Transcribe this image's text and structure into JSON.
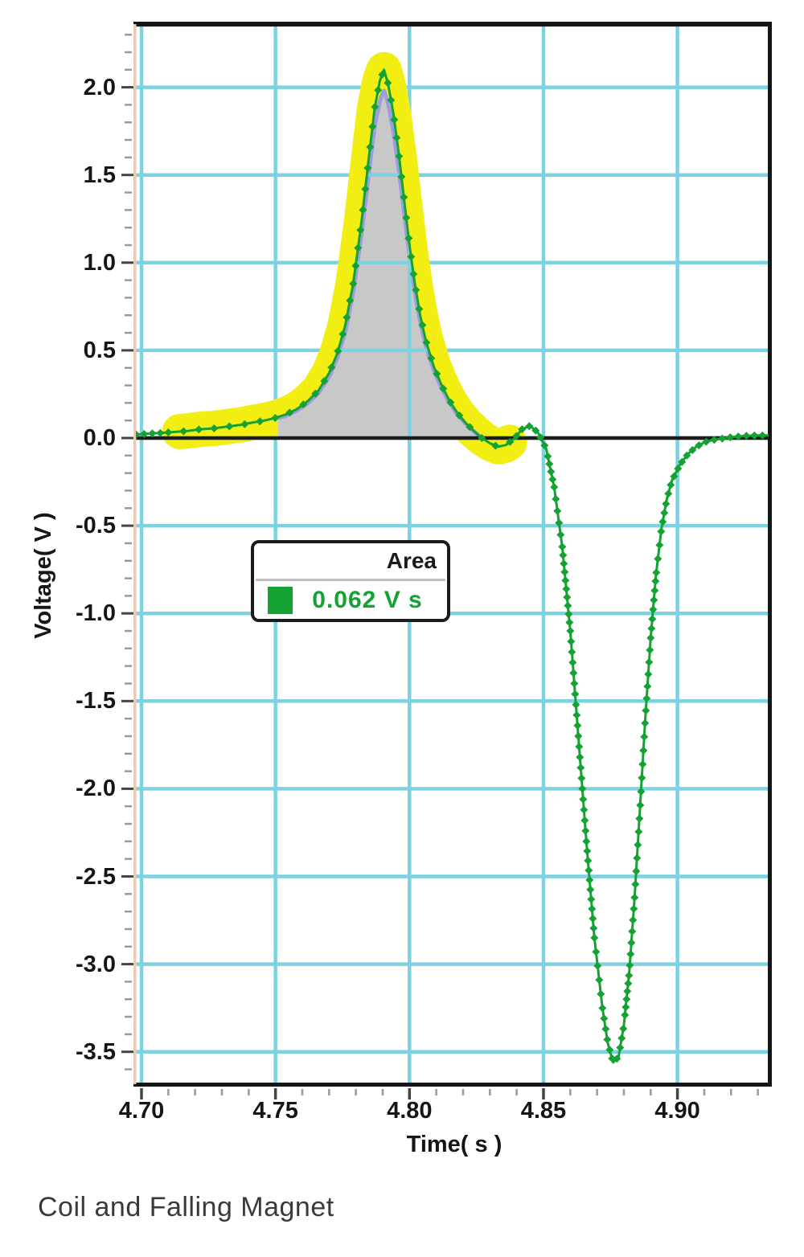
{
  "chart_data": {
    "type": "line",
    "title": "Coil and Falling Magnet",
    "xlabel": "Time( s )",
    "ylabel": "Voltage( V )",
    "grid": true,
    "grid_color": "#7dd2e2",
    "axis_color": "#161616",
    "left_spine_color": "#eacbb7",
    "tick_color": "#9a9a9a",
    "major_tick_color": "#444444",
    "zero_line_color": "#1c1c1c",
    "xlim": [
      4.698,
      4.934
    ],
    "ylim": [
      -3.7,
      2.36
    ],
    "x_minor_step": 0.01,
    "y_minor_step": 0.1,
    "x_ticks": {
      "values": [
        4.7,
        4.75,
        4.8,
        4.85,
        4.9
      ],
      "labels": [
        "4.70",
        "4.75",
        "4.80",
        "4.85",
        "4.90"
      ]
    },
    "y_ticks": {
      "values": [
        2.0,
        1.5,
        1.0,
        0.5,
        0.0,
        -0.5,
        -1.0,
        -1.5,
        -2.0,
        -2.5,
        -3.0,
        -3.5
      ],
      "labels": [
        "2.0",
        "1.5",
        "1.0",
        "0.5",
        "0.0",
        "-0.5",
        "-1.0",
        "-1.5",
        "-2.0",
        "-2.5",
        "-3.0",
        "-3.5"
      ]
    },
    "series": [
      {
        "name": "Voltage",
        "color": "#14a232",
        "marker": "diamond",
        "points": [
          [
            4.698,
            0.02
          ],
          [
            4.703,
            0.025
          ],
          [
            4.708,
            0.03
          ],
          [
            4.7125,
            0.035
          ],
          [
            4.717,
            0.04
          ],
          [
            4.722,
            0.05
          ],
          [
            4.727,
            0.055
          ],
          [
            4.732,
            0.065
          ],
          [
            4.737,
            0.075
          ],
          [
            4.742,
            0.09
          ],
          [
            4.746,
            0.1
          ],
          [
            4.75,
            0.115
          ],
          [
            4.754,
            0.135
          ],
          [
            4.758,
            0.165
          ],
          [
            4.762,
            0.21
          ],
          [
            4.766,
            0.27
          ],
          [
            4.77,
            0.37
          ],
          [
            4.773,
            0.48
          ],
          [
            4.776,
            0.64
          ],
          [
            4.779,
            0.88
          ],
          [
            4.782,
            1.22
          ],
          [
            4.785,
            1.62
          ],
          [
            4.787,
            1.88
          ],
          [
            4.789,
            2.04
          ],
          [
            4.7905,
            2.1
          ],
          [
            4.792,
            2.02
          ],
          [
            4.794,
            1.85
          ],
          [
            4.796,
            1.62
          ],
          [
            4.798,
            1.36
          ],
          [
            4.8,
            1.1
          ],
          [
            4.802,
            0.88
          ],
          [
            4.804,
            0.7
          ],
          [
            4.806,
            0.56
          ],
          [
            4.809,
            0.41
          ],
          [
            4.812,
            0.3
          ],
          [
            4.815,
            0.21
          ],
          [
            4.818,
            0.14
          ],
          [
            4.821,
            0.085
          ],
          [
            4.824,
            0.04
          ],
          [
            4.827,
            0.0
          ],
          [
            4.83,
            -0.03
          ],
          [
            4.833,
            -0.05
          ],
          [
            4.836,
            -0.04
          ],
          [
            4.839,
            -0.005
          ],
          [
            4.842,
            0.05
          ],
          [
            4.845,
            0.07
          ],
          [
            4.848,
            0.03
          ],
          [
            4.851,
            -0.06
          ],
          [
            4.854,
            -0.28
          ],
          [
            4.857,
            -0.62
          ],
          [
            4.86,
            -1.1
          ],
          [
            4.863,
            -1.7
          ],
          [
            4.866,
            -2.3
          ],
          [
            4.869,
            -2.85
          ],
          [
            4.872,
            -3.25
          ],
          [
            4.874,
            -3.45
          ],
          [
            4.876,
            -3.56
          ],
          [
            4.878,
            -3.53
          ],
          [
            4.88,
            -3.35
          ],
          [
            4.882,
            -3.05
          ],
          [
            4.884,
            -2.62
          ],
          [
            4.886,
            -2.12
          ],
          [
            4.888,
            -1.6
          ],
          [
            4.89,
            -1.14
          ],
          [
            4.892,
            -0.78
          ],
          [
            4.894,
            -0.52
          ],
          [
            4.896,
            -0.35
          ],
          [
            4.898,
            -0.24
          ],
          [
            4.901,
            -0.15
          ],
          [
            4.904,
            -0.09
          ],
          [
            4.907,
            -0.05
          ],
          [
            4.91,
            -0.025
          ],
          [
            4.913,
            -0.012
          ],
          [
            4.916,
            -0.005
          ],
          [
            4.92,
            0.005
          ],
          [
            4.925,
            0.012
          ],
          [
            4.93,
            0.015
          ],
          [
            4.934,
            0.015
          ]
        ]
      }
    ],
    "selection": {
      "t_start": 4.7125,
      "t_end": 4.8395,
      "color": "#f2ee12"
    },
    "integral": {
      "t_start": 4.751,
      "t_end": 4.827,
      "baseline": 0,
      "fill_color": "#c8c8c8",
      "edge_color": "#9c9cde",
      "area_value": 0.062,
      "area_units": "V s"
    },
    "legend": {
      "title": "Area",
      "value_label": "0.062 V s",
      "position": "left-center"
    }
  }
}
